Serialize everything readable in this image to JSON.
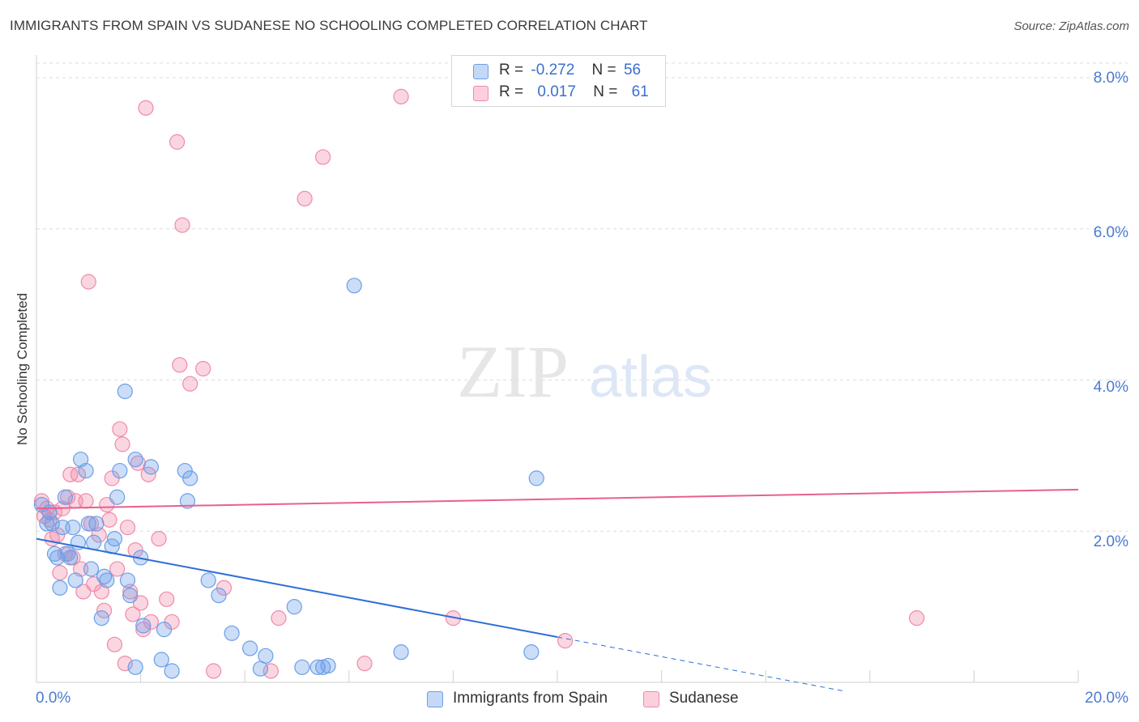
{
  "title": "IMMIGRANTS FROM SPAIN VS SUDANESE NO SCHOOLING COMPLETED CORRELATION CHART",
  "source": "Source: ZipAtlas.com",
  "watermark": {
    "zip": "ZIP",
    "atlas": "atlas"
  },
  "colors": {
    "blue": "#6b9fe8",
    "blue_line": "#2e6fd6",
    "pink": "#f08aa8",
    "pink_line": "#e8608f",
    "tick_text": "#4a7bd0",
    "grid": "#d9dde4"
  },
  "legend": {
    "rows": [
      {
        "r_label": "R =",
        "r_value": "-0.272",
        "n_label": "N =",
        "n_value": "56"
      },
      {
        "r_label": "R =",
        "r_value": "0.017",
        "n_label": "N =",
        "n_value": "61"
      }
    ]
  },
  "bottom_legend": {
    "spain": "Immigrants from Spain",
    "sudanese": "Sudanese"
  },
  "chart_data": {
    "type": "scatter",
    "title": "IMMIGRANTS FROM SPAIN VS SUDANESE NO SCHOOLING COMPLETED CORRELATION CHART",
    "xlabel": "",
    "ylabel": "No Schooling Completed",
    "xlim": [
      0,
      20
    ],
    "ylim": [
      0,
      8.3
    ],
    "x_tick_labels": [
      "0.0%",
      "20.0%"
    ],
    "y_ticks": [
      2,
      4,
      6,
      8
    ],
    "y_tick_labels": [
      "2.0%",
      "4.0%",
      "6.0%",
      "8.0%"
    ],
    "grid": true,
    "legend_position": "top-center",
    "series": [
      {
        "name": "Immigrants from Spain",
        "color": "#6b9fe8",
        "points": [
          [
            0.1,
            2.35
          ],
          [
            0.2,
            2.1
          ],
          [
            0.25,
            2.25
          ],
          [
            0.3,
            2.1
          ],
          [
            0.35,
            1.7
          ],
          [
            0.4,
            1.65
          ],
          [
            0.45,
            1.25
          ],
          [
            0.5,
            2.05
          ],
          [
            0.55,
            2.45
          ],
          [
            0.6,
            1.7
          ],
          [
            0.65,
            1.65
          ],
          [
            0.7,
            2.05
          ],
          [
            0.75,
            1.35
          ],
          [
            0.8,
            1.85
          ],
          [
            0.85,
            2.95
          ],
          [
            0.95,
            2.8
          ],
          [
            1.0,
            2.1
          ],
          [
            1.05,
            1.5
          ],
          [
            1.1,
            1.85
          ],
          [
            1.15,
            2.1
          ],
          [
            1.25,
            0.85
          ],
          [
            1.3,
            1.4
          ],
          [
            1.35,
            1.35
          ],
          [
            1.45,
            1.8
          ],
          [
            1.5,
            1.9
          ],
          [
            1.55,
            2.45
          ],
          [
            1.6,
            2.8
          ],
          [
            1.7,
            3.85
          ],
          [
            1.75,
            1.35
          ],
          [
            1.8,
            1.15
          ],
          [
            1.9,
            0.2
          ],
          [
            1.9,
            2.95
          ],
          [
            2.0,
            1.65
          ],
          [
            2.05,
            0.75
          ],
          [
            2.2,
            2.85
          ],
          [
            2.4,
            0.3
          ],
          [
            2.45,
            0.7
          ],
          [
            2.6,
            0.15
          ],
          [
            2.85,
            2.8
          ],
          [
            2.9,
            2.4
          ],
          [
            2.95,
            2.7
          ],
          [
            3.3,
            1.35
          ],
          [
            3.5,
            1.15
          ],
          [
            3.75,
            0.65
          ],
          [
            4.1,
            0.45
          ],
          [
            4.3,
            0.18
          ],
          [
            4.4,
            0.35
          ],
          [
            4.95,
            1.0
          ],
          [
            5.1,
            0.2
          ],
          [
            5.4,
            0.2
          ],
          [
            5.5,
            0.2
          ],
          [
            5.6,
            0.22
          ],
          [
            6.1,
            5.25
          ],
          [
            7.0,
            0.4
          ],
          [
            9.5,
            0.4
          ],
          [
            9.6,
            2.7
          ]
        ]
      },
      {
        "name": "Sudanese",
        "color": "#f08aa8",
        "points": [
          [
            0.1,
            2.4
          ],
          [
            0.15,
            2.2
          ],
          [
            0.2,
            2.3
          ],
          [
            0.25,
            2.15
          ],
          [
            0.3,
            1.9
          ],
          [
            0.35,
            2.25
          ],
          [
            0.4,
            1.95
          ],
          [
            0.45,
            1.45
          ],
          [
            0.5,
            2.3
          ],
          [
            0.55,
            1.7
          ],
          [
            0.6,
            2.45
          ],
          [
            0.65,
            2.75
          ],
          [
            0.7,
            1.65
          ],
          [
            0.75,
            2.4
          ],
          [
            0.8,
            2.75
          ],
          [
            0.85,
            1.5
          ],
          [
            0.9,
            1.2
          ],
          [
            0.95,
            2.4
          ],
          [
            1.0,
            5.3
          ],
          [
            1.05,
            2.1
          ],
          [
            1.1,
            1.3
          ],
          [
            1.2,
            1.95
          ],
          [
            1.25,
            1.2
          ],
          [
            1.3,
            0.95
          ],
          [
            1.35,
            2.35
          ],
          [
            1.4,
            2.15
          ],
          [
            1.45,
            2.7
          ],
          [
            1.5,
            0.5
          ],
          [
            1.55,
            1.5
          ],
          [
            1.6,
            3.35
          ],
          [
            1.65,
            3.15
          ],
          [
            1.7,
            0.25
          ],
          [
            1.75,
            2.05
          ],
          [
            1.8,
            1.2
          ],
          [
            1.85,
            0.9
          ],
          [
            1.9,
            1.75
          ],
          [
            1.95,
            2.9
          ],
          [
            2.0,
            1.05
          ],
          [
            2.05,
            0.7
          ],
          [
            2.1,
            7.6
          ],
          [
            2.15,
            2.75
          ],
          [
            2.2,
            0.8
          ],
          [
            2.35,
            1.9
          ],
          [
            2.5,
            1.1
          ],
          [
            2.6,
            0.8
          ],
          [
            2.7,
            7.15
          ],
          [
            2.75,
            4.2
          ],
          [
            2.8,
            6.05
          ],
          [
            2.95,
            3.95
          ],
          [
            3.2,
            4.15
          ],
          [
            3.4,
            0.15
          ],
          [
            3.6,
            1.25
          ],
          [
            4.5,
            0.15
          ],
          [
            4.65,
            0.85
          ],
          [
            5.15,
            6.4
          ],
          [
            5.5,
            6.95
          ],
          [
            6.3,
            0.25
          ],
          [
            7.0,
            7.75
          ],
          [
            8.0,
            0.85
          ],
          [
            10.15,
            0.55
          ],
          [
            16.9,
            0.85
          ]
        ]
      }
    ],
    "trend_lines": [
      {
        "series": "Immigrants from Spain",
        "x": [
          0,
          10
        ],
        "y": [
          1.9,
          0.6
        ],
        "dashed_extension_to_x": 15.5
      },
      {
        "series": "Sudanese",
        "x": [
          0,
          20
        ],
        "y": [
          2.3,
          2.55
        ]
      }
    ]
  }
}
